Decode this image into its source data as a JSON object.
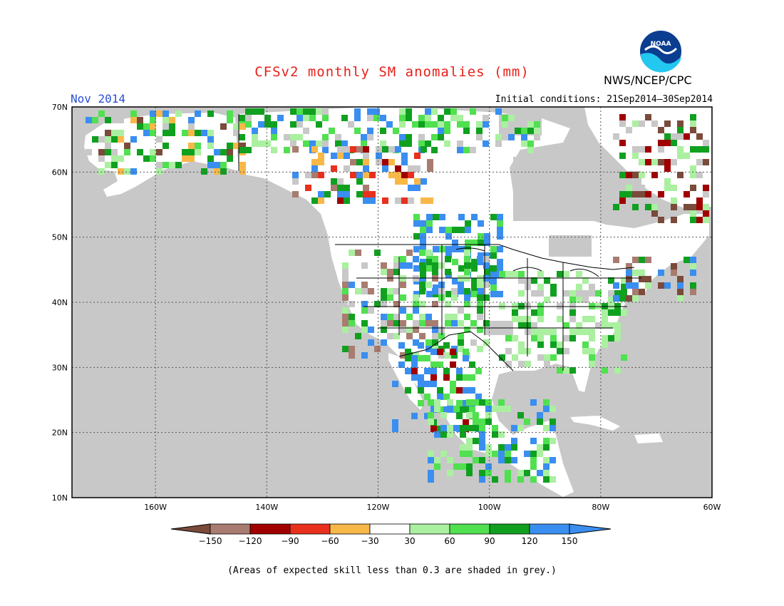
{
  "title": "CFSv2 monthly SM anomalies (mm)",
  "month": "Nov 2014",
  "initial_conditions": "Initial conditions: 21Sep2014–30Sep2014",
  "agency": "NWS/NCEP/CPC",
  "logo_text": "NOAA",
  "footnote": "(Areas of expected skill less than 0.3 are shaded in grey.)",
  "lat_labels": [
    "70N",
    "60N",
    "50N",
    "40N",
    "30N",
    "20N",
    "10N"
  ],
  "lon_labels": [
    "160W",
    "140W",
    "120W",
    "100W",
    "80W",
    "60W"
  ],
  "legend": {
    "tick_labels": [
      "−150",
      "−120",
      "−90",
      "−60",
      "−30",
      "30",
      "60",
      "90",
      "120",
      "150"
    ],
    "colors": [
      "#7a4a3a",
      "#a87c70",
      "#a00000",
      "#e8301c",
      "#f8b848",
      "#ffffff",
      "#aaf0a0",
      "#50e050",
      "#10a020",
      "#3a8ef0",
      "#3a8ef0"
    ]
  },
  "colors": {
    "skill_grey": "#c8c8c8",
    "ocean": "#c8c8c8",
    "land": "#ffffff",
    "title_red": "#e8201a",
    "month_blue": "#2a4fd6"
  }
}
